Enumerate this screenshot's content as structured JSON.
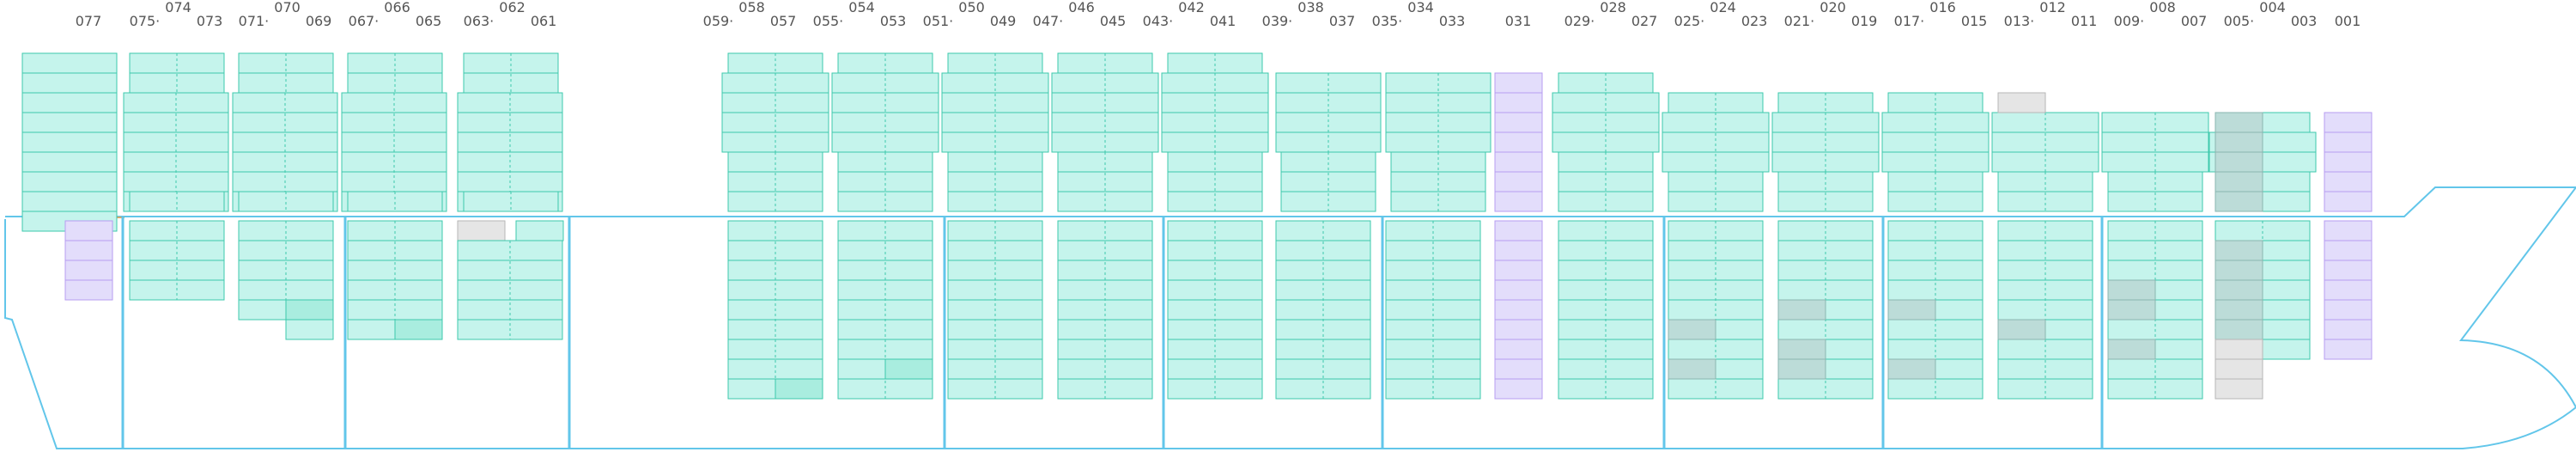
{
  "app": {
    "view": "bay-plan",
    "colors": {
      "hull": "#62c6ea",
      "bulkhead": "#62c6ea",
      "cell_fill": "#c5f4ec",
      "cell_stroke": "#3dc9ac",
      "cell_selected": "#a9eddf",
      "cell_grey": "#bcdcd8",
      "cell_grey_stroke": "#8ab6b0",
      "cell_purple": "#e3ddfb",
      "cell_purple_stroke": "#b79df0",
      "cell_empty": "#e5e5e5",
      "cell_empty_stroke": "#b6b6b6",
      "label_text": "#555555"
    }
  },
  "bays": [
    {
      "id": "b077",
      "parts": [
        {
          "text": "077"
        }
      ]
    },
    {
      "id": "b075",
      "parts": [
        {
          "text": "075"
        },
        {
          "text": "074",
          "sub": true
        },
        {
          "text": "073"
        }
      ]
    },
    {
      "id": "b071",
      "parts": [
        {
          "text": "071"
        },
        {
          "text": "070",
          "sub": true
        },
        {
          "text": "069"
        }
      ]
    },
    {
      "id": "b067",
      "parts": [
        {
          "text": "067"
        },
        {
          "text": "066",
          "sub": true
        },
        {
          "text": "065"
        }
      ]
    },
    {
      "id": "b063",
      "parts": [
        {
          "text": "063"
        },
        {
          "text": "062",
          "sub": true
        },
        {
          "text": "061"
        }
      ]
    },
    {
      "id": "b059",
      "parts": [
        {
          "text": "059"
        },
        {
          "text": "058",
          "sub": true
        },
        {
          "text": "057"
        }
      ]
    },
    {
      "id": "b055",
      "parts": [
        {
          "text": "055"
        },
        {
          "text": "054",
          "sub": true
        },
        {
          "text": "053"
        }
      ]
    },
    {
      "id": "b051",
      "parts": [
        {
          "text": "051"
        },
        {
          "text": "050",
          "sub": true
        },
        {
          "text": "049"
        }
      ]
    },
    {
      "id": "b047",
      "parts": [
        {
          "text": "047"
        },
        {
          "text": "046",
          "sub": true
        },
        {
          "text": "045"
        }
      ]
    },
    {
      "id": "b043",
      "parts": [
        {
          "text": "043"
        },
        {
          "text": "042",
          "sub": true
        },
        {
          "text": "041"
        }
      ]
    },
    {
      "id": "b039",
      "parts": [
        {
          "text": "039"
        },
        {
          "text": "038",
          "sub": true
        },
        {
          "text": "037"
        }
      ]
    },
    {
      "id": "b035",
      "parts": [
        {
          "text": "035"
        },
        {
          "text": "034",
          "sub": true
        },
        {
          "text": "033"
        }
      ]
    },
    {
      "id": "b031",
      "parts": [
        {
          "text": "031"
        }
      ]
    },
    {
      "id": "b029",
      "parts": [
        {
          "text": "029"
        },
        {
          "text": "028",
          "sub": true
        },
        {
          "text": "027"
        }
      ]
    },
    {
      "id": "b025",
      "parts": [
        {
          "text": "025"
        },
        {
          "text": "024",
          "sub": true
        },
        {
          "text": "023"
        }
      ]
    },
    {
      "id": "b021",
      "parts": [
        {
          "text": "021"
        },
        {
          "text": "020",
          "sub": true
        },
        {
          "text": "019"
        }
      ]
    },
    {
      "id": "b017",
      "parts": [
        {
          "text": "017"
        },
        {
          "text": "016",
          "sub": true
        },
        {
          "text": "015"
        }
      ]
    },
    {
      "id": "b013",
      "parts": [
        {
          "text": "013"
        },
        {
          "text": "012",
          "sub": true
        },
        {
          "text": "011"
        }
      ]
    },
    {
      "id": "b009",
      "parts": [
        {
          "text": "009"
        },
        {
          "text": "008",
          "sub": true
        },
        {
          "text": "007"
        }
      ]
    },
    {
      "id": "b005",
      "parts": [
        {
          "text": "005"
        },
        {
          "text": "004",
          "sub": true
        },
        {
          "text": "003"
        }
      ]
    },
    {
      "id": "b001",
      "parts": [
        {
          "text": "001"
        }
      ]
    }
  ]
}
